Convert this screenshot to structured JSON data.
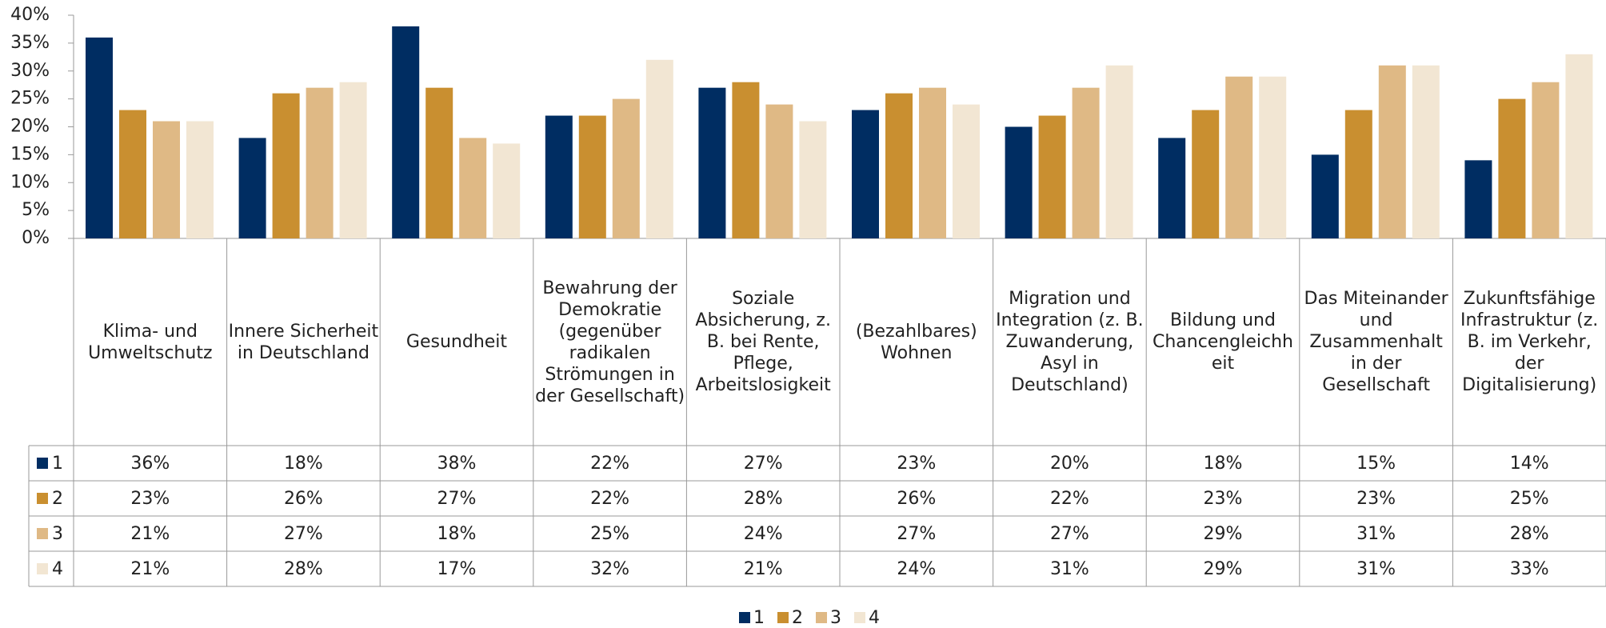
{
  "chart_data": {
    "type": "bar",
    "categories": [
      "Klima- und Umweltschutz",
      "Innere Sicherheit in Deutschland",
      "Gesundheit",
      "Bewahrung der Demokratie (gegenüber radikalen Strömungen in der Gesellschaft)",
      "Soziale Absicherung, z. B. bei Rente, Pflege, Arbeitslosigkeit",
      "(Bezahlbares) Wohnen",
      "Migration und Integration (z. B. Zuwanderung, Asyl in Deutschland)",
      "Bildung und Chancengleichheit",
      "Das Miteinander und Zusammenhalt in der Gesellschaft",
      "Zukunftsfähige Infrastruktur (z. B. im Verkehr, der Digitalisierung)"
    ],
    "series": [
      {
        "name": "1",
        "color": "#002d62",
        "values": [
          36,
          18,
          38,
          22,
          27,
          23,
          20,
          18,
          15,
          14
        ],
        "value_labels": [
          "36%",
          "18%",
          "38%",
          "22%",
          "27%",
          "23%",
          "20%",
          "18%",
          "15%",
          "14%"
        ]
      },
      {
        "name": "2",
        "color": "#c98f30",
        "values": [
          23,
          26,
          27,
          22,
          28,
          26,
          22,
          23,
          23,
          25
        ],
        "value_labels": [
          "23%",
          "26%",
          "27%",
          "22%",
          "28%",
          "26%",
          "22%",
          "23%",
          "23%",
          "25%"
        ]
      },
      {
        "name": "3",
        "color": "#dfb985",
        "values": [
          21,
          27,
          18,
          25,
          24,
          27,
          27,
          29,
          31,
          28
        ],
        "value_labels": [
          "21%",
          "27%",
          "18%",
          "25%",
          "24%",
          "27%",
          "27%",
          "29%",
          "31%",
          "28%"
        ]
      },
      {
        "name": "4",
        "color": "#f2e6d3",
        "values": [
          21,
          28,
          17,
          32,
          21,
          24,
          31,
          29,
          31,
          33
        ],
        "value_labels": [
          "21%",
          "28%",
          "17%",
          "32%",
          "21%",
          "24%",
          "31%",
          "29%",
          "31%",
          "33%"
        ]
      }
    ],
    "ylim": [
      0,
      40
    ],
    "yticks": [
      {
        "value": 0,
        "label": "0%"
      },
      {
        "value": 5,
        "label": "5%"
      },
      {
        "value": 10,
        "label": "10%"
      },
      {
        "value": 15,
        "label": "15%"
      },
      {
        "value": 20,
        "label": "20%"
      },
      {
        "value": 25,
        "label": "25%"
      },
      {
        "value": 30,
        "label": "30%"
      },
      {
        "value": 35,
        "label": "35%"
      },
      {
        "value": 40,
        "label": "40%"
      }
    ],
    "grid": false,
    "legend": "bottom"
  }
}
